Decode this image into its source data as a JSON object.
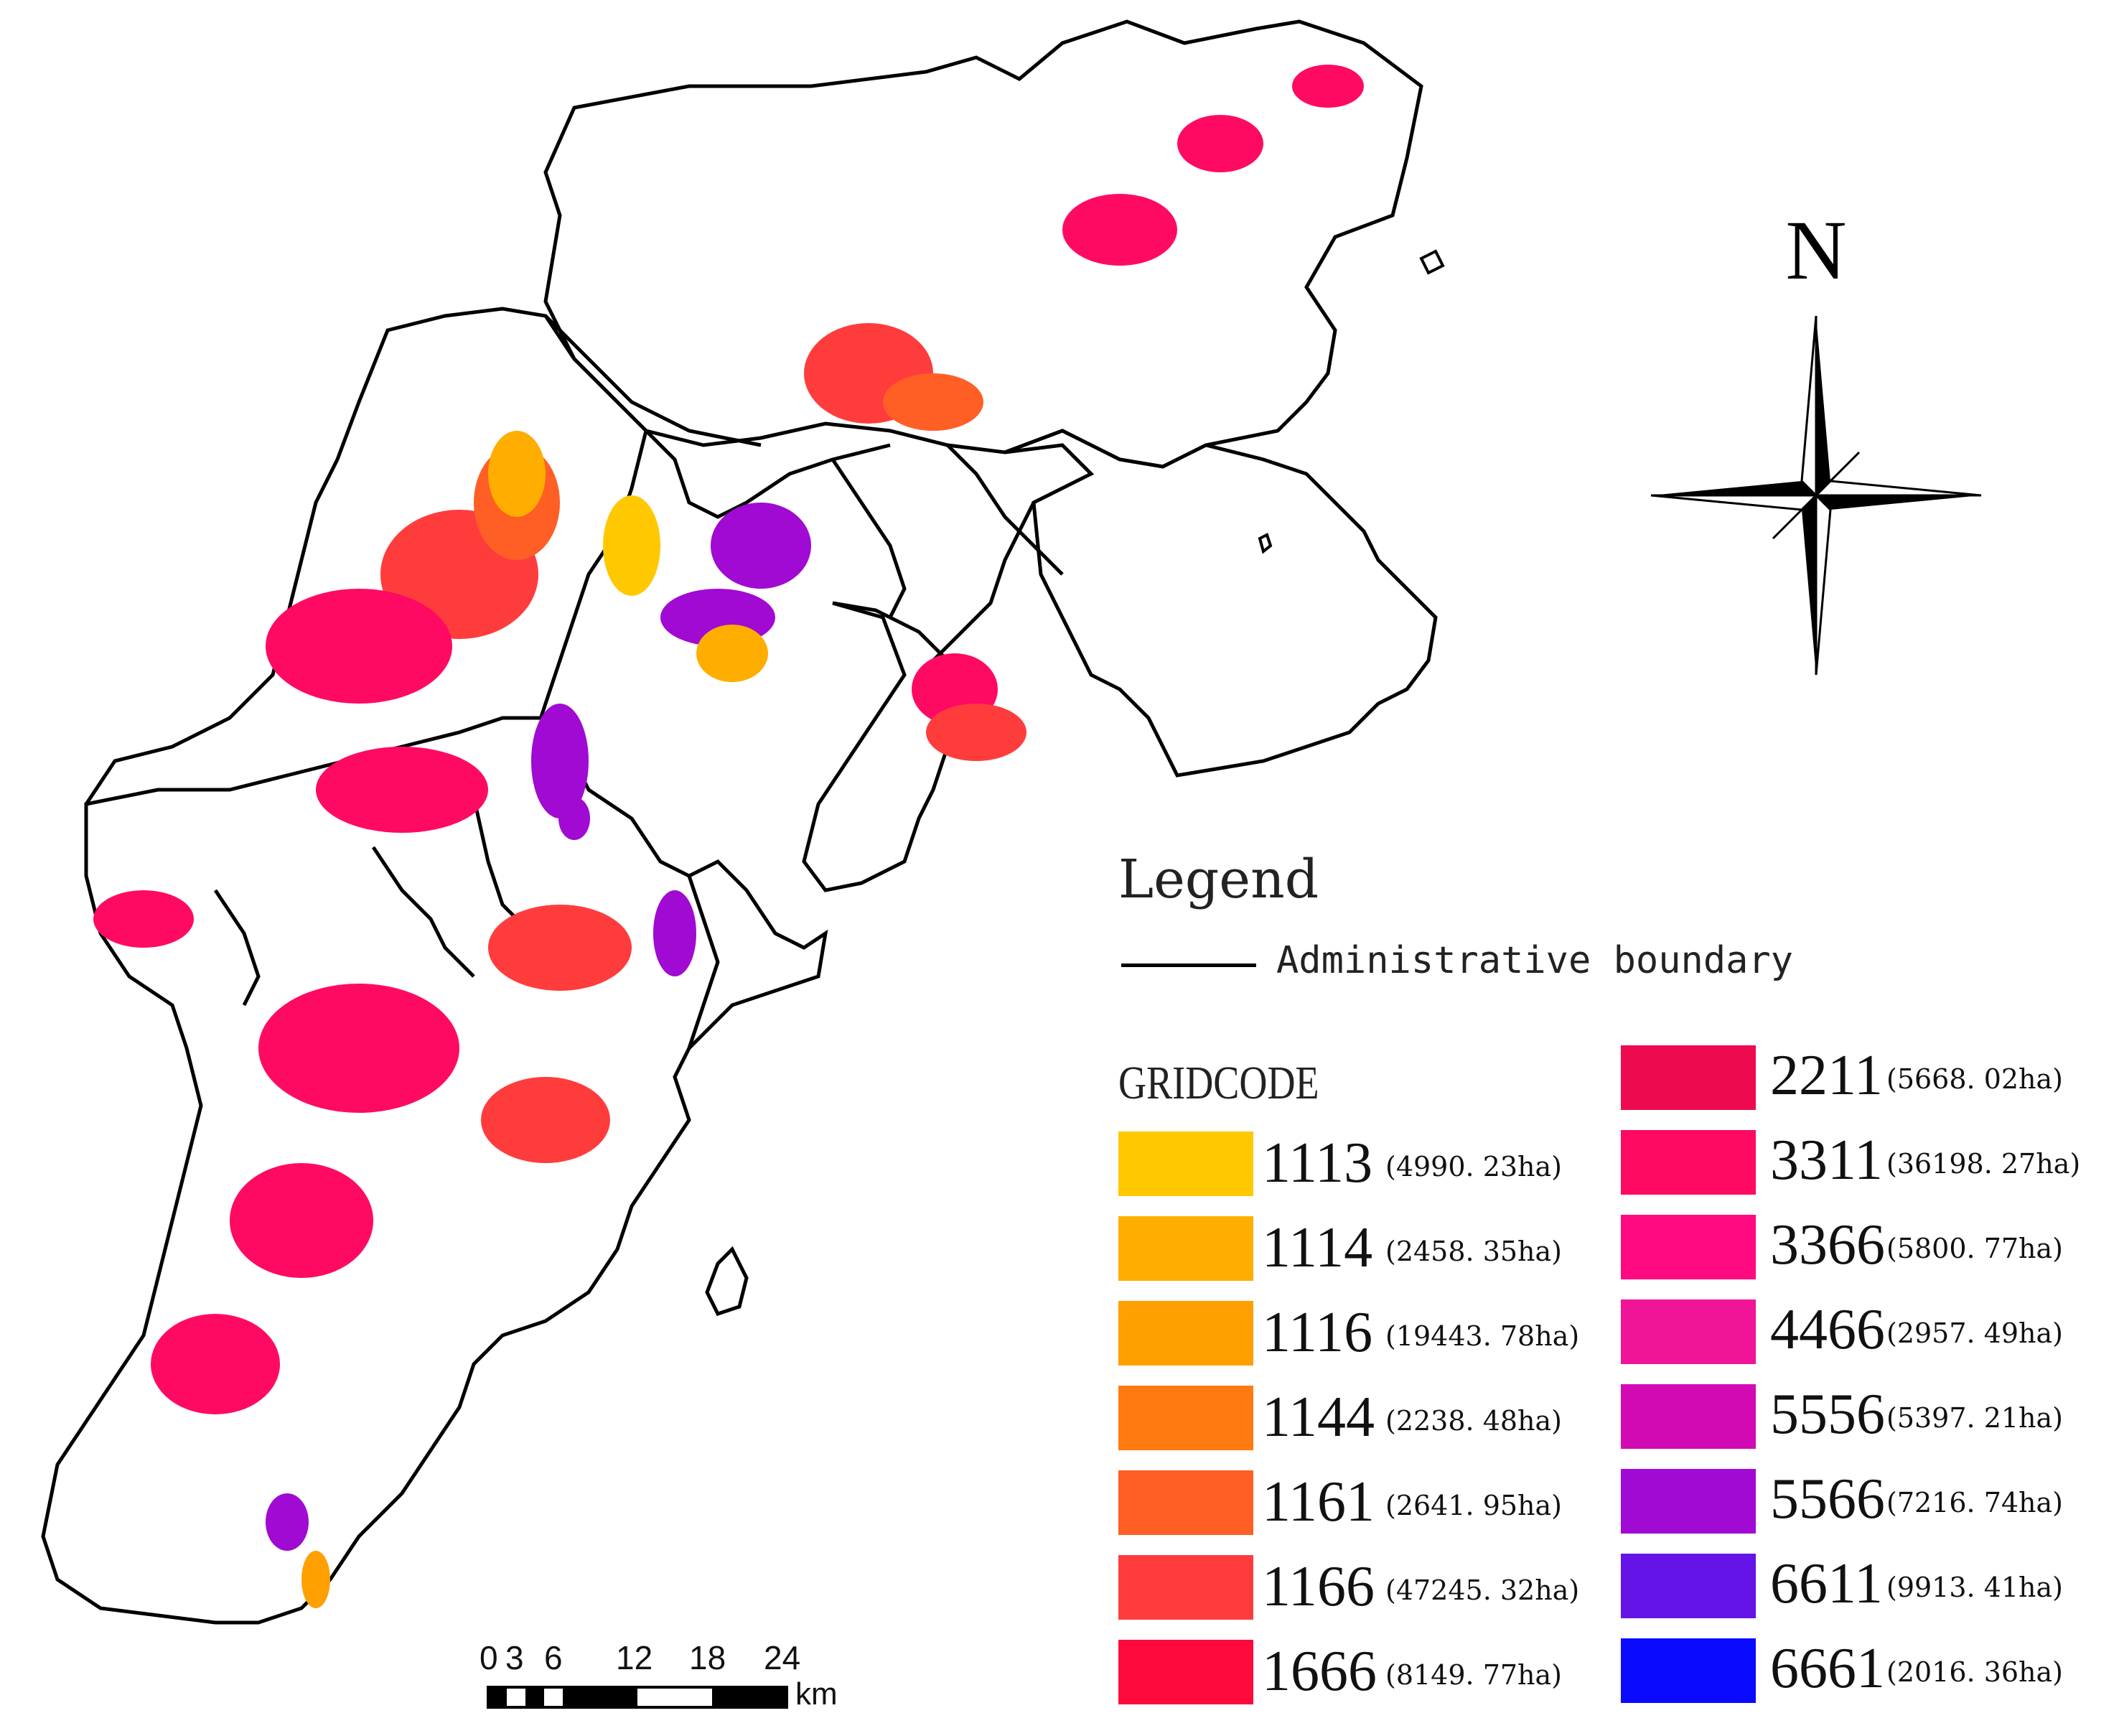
{
  "north_arrow": {
    "letter": "N"
  },
  "legend": {
    "title": "Legend",
    "boundary_label": "Administrative boundary",
    "gridcode_title": "GRIDCODE",
    "items_left": [
      {
        "code": "1113",
        "area": "(4990. 23ha)",
        "color": "#ffc800"
      },
      {
        "code": "1114",
        "area": "(2458. 35ha)",
        "color": "#ffae00"
      },
      {
        "code": "1116",
        "area": "(19443. 78ha)",
        "color": "#ff9f00"
      },
      {
        "code": "1144",
        "area": "(2238. 48ha)",
        "color": "#ff7a10"
      },
      {
        "code": "1161",
        "area": "(2641. 95ha)",
        "color": "#ff5e24"
      },
      {
        "code": "1166",
        "area": "(47245. 32ha)",
        "color": "#ff3c3c"
      },
      {
        "code": "1666",
        "area": "(8149. 77ha)",
        "color": "#ff0a3c"
      }
    ],
    "items_right": [
      {
        "code": "2211",
        "area": "(5668. 02ha)",
        "color": "#ee0a4e"
      },
      {
        "code": "3311",
        "area": "(36198. 27ha)",
        "color": "#ff0a62"
      },
      {
        "code": "3366",
        "area": "(5800. 77ha)",
        "color": "#ff0a80"
      },
      {
        "code": "4466",
        "area": "(2957. 49ha)",
        "color": "#f01496"
      },
      {
        "code": "5556",
        "area": "(5397. 21ha)",
        "color": "#d20ab4"
      },
      {
        "code": "5566",
        "area": "(7216. 74ha)",
        "color": "#a00ad2"
      },
      {
        "code": "6611",
        "area": "(9913. 41ha)",
        "color": "#6414e6"
      },
      {
        "code": "6661",
        "area": "(2016. 36ha)",
        "color": "#0a0aff"
      }
    ]
  },
  "scale_bar": {
    "ticks": [
      "0",
      "3",
      "6",
      "12",
      "18",
      "24"
    ],
    "unit": "km"
  }
}
